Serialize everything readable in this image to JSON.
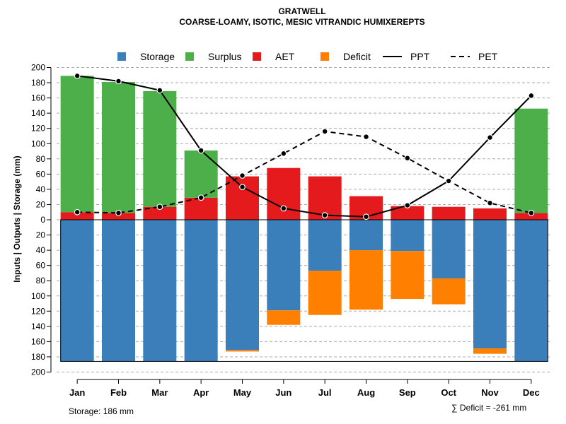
{
  "chart_data": {
    "type": "bar",
    "title": "GRATWELL",
    "subtitle": "COARSE-LOAMY, ISOTIC, MESIC VITRANDIC HUMIXEREPTS",
    "ylabel": "Inputs | Outputs | Storage     (mm)",
    "ylim": [
      -200,
      200
    ],
    "yticks": [
      200,
      180,
      160,
      140,
      120,
      100,
      80,
      60,
      40,
      20,
      0,
      20,
      40,
      60,
      80,
      100,
      120,
      140,
      160,
      180,
      200
    ],
    "categories": [
      "Jan",
      "Feb",
      "Mar",
      "Apr",
      "May",
      "Jun",
      "Jul",
      "Aug",
      "Sep",
      "Oct",
      "Nov",
      "Dec"
    ],
    "legend": [
      "Storage",
      "Surplus",
      "AET",
      "Deficit",
      "PPT",
      "PET"
    ],
    "colors": {
      "storage": "#3a7fb9",
      "surplus": "#4daf4a",
      "aet": "#e41a1c",
      "deficit": "#ff7f00",
      "grid": "#aaaaaa",
      "line": "#000000"
    },
    "series": {
      "aet": [
        10,
        9,
        17,
        29,
        57,
        68,
        57,
        31,
        18,
        17,
        15,
        9
      ],
      "surplus": [
        179,
        172,
        152,
        62,
        0,
        0,
        0,
        0,
        0,
        0,
        0,
        137
      ],
      "storage": [
        186,
        186,
        186,
        186,
        171,
        119,
        67,
        40,
        41,
        77,
        169,
        186
      ],
      "deficit": [
        0,
        0,
        0,
        0,
        2,
        19,
        58,
        78,
        63,
        34,
        7,
        0
      ],
      "ppt": [
        189,
        182,
        170,
        91,
        43,
        15,
        6,
        4,
        19,
        51,
        108,
        163
      ],
      "pet": [
        10,
        9,
        17,
        29,
        58,
        87,
        116,
        109,
        81,
        51,
        22,
        9
      ]
    },
    "storage_capacity": 186
  },
  "footer": {
    "storage": "Storage: 186 mm",
    "deficit": "∑ Deficit = -261 mm"
  }
}
